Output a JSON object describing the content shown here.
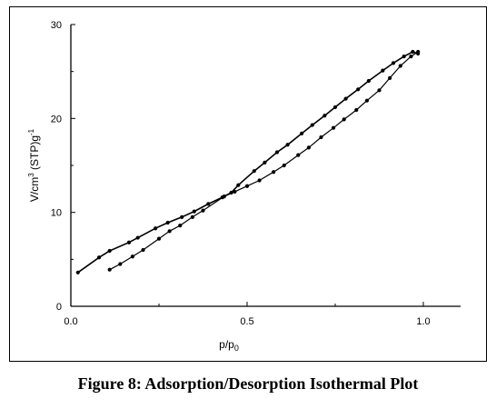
{
  "caption": "Figure 8: Adsorption/Desorption Isothermal Plot",
  "chart_data": {
    "type": "line",
    "title": "",
    "xlabel": "p/p0",
    "ylabel": "V/cm3 (STP)g-1",
    "x_ticks": [
      "0.0",
      "0.5",
      "1.0"
    ],
    "y_ticks": [
      "0",
      "10",
      "20",
      "30"
    ],
    "xlim": [
      0.0,
      1.1
    ],
    "ylim": [
      0,
      30
    ],
    "grid": false,
    "legend": "none",
    "colors": {
      "line": "#000000",
      "marker": "#000000"
    },
    "series": [
      {
        "x": [
          0.02,
          0.08,
          0.11,
          0.165,
          0.19,
          0.24,
          0.275,
          0.315,
          0.35,
          0.39,
          0.43,
          0.455,
          0.475,
          0.52,
          0.55,
          0.585,
          0.615,
          0.655,
          0.685,
          0.72,
          0.75,
          0.78,
          0.815,
          0.845,
          0.885,
          0.915,
          0.945,
          0.97,
          0.985
        ],
        "y": [
          3.6,
          5.2,
          5.9,
          6.8,
          7.3,
          8.3,
          8.9,
          9.5,
          10.1,
          10.9,
          11.6,
          12.1,
          12.9,
          14.4,
          15.3,
          16.4,
          17.2,
          18.4,
          19.3,
          20.3,
          21.2,
          22.1,
          23.1,
          24.0,
          25.1,
          25.9,
          26.6,
          27.1,
          26.9
        ]
      },
      {
        "x": [
          0.11,
          0.14,
          0.175,
          0.205,
          0.25,
          0.28,
          0.31,
          0.345,
          0.375,
          0.435,
          0.465,
          0.5,
          0.535,
          0.575,
          0.605,
          0.645,
          0.675,
          0.71,
          0.745,
          0.775,
          0.81,
          0.84,
          0.875,
          0.905,
          0.935,
          0.965,
          0.985
        ],
        "y": [
          3.9,
          4.5,
          5.3,
          6.0,
          7.2,
          8.0,
          8.6,
          9.5,
          10.2,
          11.7,
          12.2,
          12.8,
          13.4,
          14.3,
          15.0,
          16.1,
          16.9,
          18.0,
          19.0,
          19.9,
          20.9,
          21.9,
          23.0,
          24.3,
          25.6,
          26.6,
          27.1
        ]
      }
    ]
  }
}
